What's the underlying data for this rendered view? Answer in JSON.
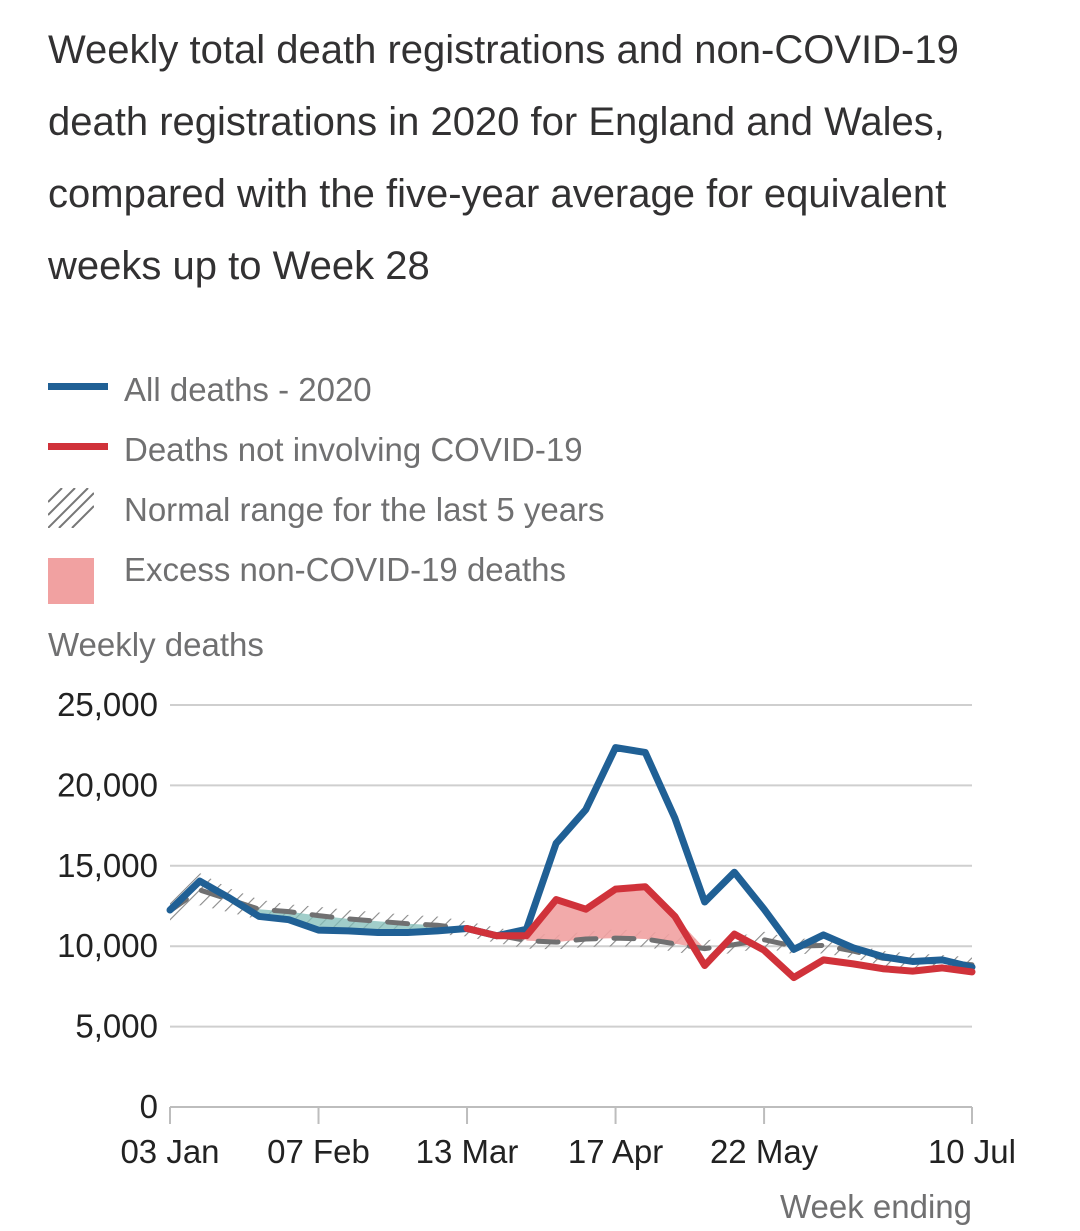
{
  "chart_data": {
    "type": "line",
    "title": "Weekly total death registrations and non-COVID-19 death registrations in 2020 for England and Wales, compared with the five-year average for equivalent weeks up to Week 28",
    "ylabel": "Weekly deaths",
    "xlabel": "Week ending",
    "ylim": [
      0,
      25000
    ],
    "y_ticks": [
      0,
      5000,
      10000,
      15000,
      20000,
      25000
    ],
    "y_tick_labels": [
      "0",
      "5,000",
      "10,000",
      "15,000",
      "20,000",
      "25,000"
    ],
    "x": [
      1,
      2,
      3,
      4,
      5,
      6,
      7,
      8,
      9,
      10,
      11,
      12,
      13,
      14,
      15,
      16,
      17,
      18,
      19,
      20,
      21,
      22,
      23,
      24,
      25,
      26,
      27,
      28
    ],
    "x_ticks": [
      1,
      6,
      11,
      16,
      21,
      28
    ],
    "x_tick_labels": [
      "03 Jan",
      "07 Feb",
      "13 Mar",
      "17 Apr",
      "22 May",
      "10 Jul"
    ],
    "legend": [
      {
        "label": "All deaths - 2020",
        "kind": "line",
        "color": "#206095"
      },
      {
        "label": "Deaths not involving COVID-19",
        "kind": "line",
        "color": "#d0323a"
      },
      {
        "label": "Normal range for the last 5 years",
        "kind": "hatch",
        "color": "#707071"
      },
      {
        "label": "Excess non-COVID-19 deaths",
        "kind": "area",
        "color": "#f1a1a1"
      }
    ],
    "series": [
      {
        "name": "All deaths - 2020",
        "color": "#206095",
        "values": [
          12250,
          14050,
          13000,
          11850,
          11650,
          11000,
          10950,
          10850,
          10850,
          10950,
          11100,
          10650,
          11050,
          16400,
          18500,
          22350,
          22050,
          17950,
          12750,
          14600,
          12300,
          9800,
          10700,
          9900,
          9350,
          9050,
          9150,
          8700
        ]
      },
      {
        "name": "Deaths not involving COVID-19",
        "color": "#d0323a",
        "values": [
          null,
          null,
          null,
          null,
          null,
          null,
          null,
          null,
          null,
          null,
          11100,
          10650,
          10650,
          12900,
          12300,
          13550,
          13700,
          11850,
          8800,
          10750,
          9750,
          8050,
          9150,
          8900,
          8600,
          8450,
          8650,
          8400
        ]
      },
      {
        "name": "Five-year average",
        "color": "#707071",
        "values": [
          12200,
          13500,
          12900,
          12300,
          12150,
          11900,
          11700,
          11550,
          11400,
          11300,
          11100,
          10700,
          10350,
          10250,
          10450,
          10500,
          10450,
          10150,
          9850,
          10100,
          10400,
          10000,
          10050,
          9700,
          9250,
          9100,
          9000,
          8850
        ]
      },
      {
        "name": "Normal range upper",
        "values": [
          13000,
          14550,
          13600,
          12900,
          12600,
          12450,
          12250,
          12100,
          11950,
          11850,
          11550,
          11150,
          10850,
          10700,
          10900,
          11050,
          10950,
          10700,
          10350,
          10600,
          10900,
          10450,
          10500,
          10100,
          9700,
          9550,
          9450,
          9300
        ]
      },
      {
        "name": "Normal range lower",
        "values": [
          11450,
          12550,
          12100,
          11650,
          11550,
          11300,
          11100,
          10950,
          10850,
          10750,
          10600,
          10200,
          9850,
          9800,
          9950,
          10000,
          9950,
          9650,
          9350,
          9600,
          9900,
          9500,
          9550,
          9250,
          8800,
          8650,
          8550,
          8400
        ]
      }
    ]
  }
}
